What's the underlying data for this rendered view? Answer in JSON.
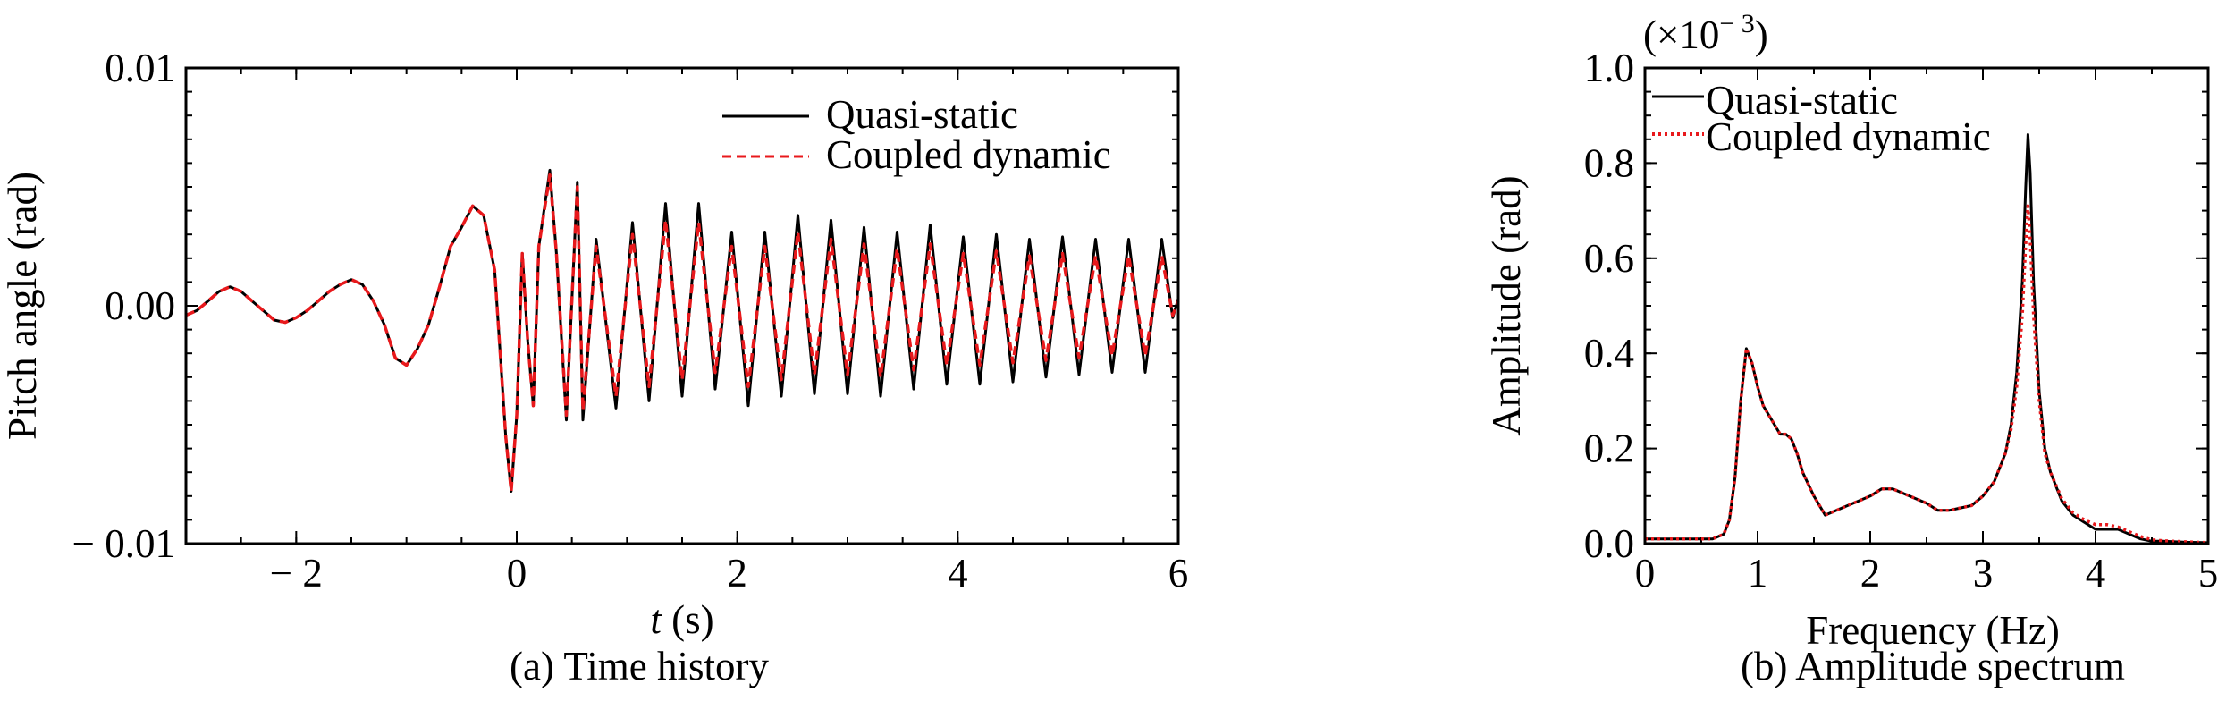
{
  "chart_data": [
    {
      "type": "line",
      "caption": "(a) Time history",
      "xlabel_var": "t",
      "xlabel_unit": " (s)",
      "ylabel": "Pitch angle (rad)",
      "xlim": [
        -3,
        6
      ],
      "ylim": [
        -0.01,
        0.01
      ],
      "xticks": [
        -2,
        0,
        2,
        4,
        6
      ],
      "xtick_labels": [
        "− 2",
        "0",
        "2",
        "4",
        "6"
      ],
      "yticks": [
        -0.01,
        0.0,
        0.01
      ],
      "ytick_labels": [
        "− 0.01",
        "0.00",
        "0.01"
      ],
      "legend_position": "top-right",
      "series": [
        {
          "name": "Quasi-static",
          "color": "#000000",
          "dash": "solid",
          "x": [
            -3.0,
            -2.9,
            -2.8,
            -2.7,
            -2.6,
            -2.5,
            -2.4,
            -2.3,
            -2.2,
            -2.1,
            -2.0,
            -1.9,
            -1.8,
            -1.7,
            -1.6,
            -1.5,
            -1.4,
            -1.3,
            -1.2,
            -1.1,
            -1.0,
            -0.9,
            -0.8,
            -0.7,
            -0.6,
            -0.5,
            -0.4,
            -0.3,
            -0.2,
            -0.1,
            -0.05,
            0.0,
            0.05,
            0.1,
            0.15,
            0.2,
            0.3,
            0.36,
            0.45,
            0.55,
            0.6,
            0.72,
            0.9,
            1.05,
            1.2,
            1.35,
            1.5,
            1.65,
            1.8,
            1.95,
            2.1,
            2.25,
            2.4,
            2.55,
            2.7,
            2.85,
            3.0,
            3.15,
            3.3,
            3.45,
            3.6,
            3.75,
            3.9,
            4.05,
            4.2,
            4.35,
            4.5,
            4.65,
            4.8,
            4.95,
            5.1,
            5.25,
            5.4,
            5.55,
            5.7,
            5.85,
            5.95,
            6.0
          ],
          "y": [
            -0.0004,
            -0.0002,
            0.0002,
            0.0006,
            0.0008,
            0.0006,
            0.0002,
            -0.0002,
            -0.0006,
            -0.0007,
            -0.0005,
            -0.0002,
            0.0002,
            0.0006,
            0.0009,
            0.0011,
            0.0009,
            0.0002,
            -0.0008,
            -0.0022,
            -0.0025,
            -0.0018,
            -0.0008,
            0.0008,
            0.0025,
            0.0033,
            0.0042,
            0.0038,
            0.0015,
            -0.0055,
            -0.0078,
            -0.0046,
            0.0022,
            -0.0015,
            -0.0042,
            0.0025,
            0.0057,
            0.0022,
            -0.0048,
            0.0052,
            -0.0048,
            0.0028,
            -0.0043,
            0.0035,
            -0.004,
            0.0043,
            -0.0038,
            0.0043,
            -0.0035,
            0.0031,
            -0.0042,
            0.0031,
            -0.0038,
            0.0038,
            -0.0037,
            0.0036,
            -0.0037,
            0.0033,
            -0.0038,
            0.0031,
            -0.0035,
            0.0034,
            -0.0033,
            0.0029,
            -0.0033,
            0.003,
            -0.0032,
            0.0028,
            -0.003,
            0.0029,
            -0.0029,
            0.0028,
            -0.0028,
            0.0028,
            -0.0028,
            0.0028,
            -0.0005,
            0.0003
          ]
        },
        {
          "name": "Coupled dynamic",
          "color": "#e8191c",
          "dash": "dashed",
          "x": [
            -3.0,
            -2.9,
            -2.8,
            -2.7,
            -2.6,
            -2.5,
            -2.4,
            -2.3,
            -2.2,
            -2.1,
            -2.0,
            -1.9,
            -1.8,
            -1.7,
            -1.6,
            -1.5,
            -1.4,
            -1.3,
            -1.2,
            -1.1,
            -1.0,
            -0.9,
            -0.8,
            -0.7,
            -0.6,
            -0.5,
            -0.4,
            -0.3,
            -0.2,
            -0.1,
            -0.05,
            0.0,
            0.05,
            0.1,
            0.15,
            0.2,
            0.3,
            0.36,
            0.45,
            0.55,
            0.6,
            0.72,
            0.9,
            1.05,
            1.2,
            1.35,
            1.5,
            1.65,
            1.8,
            1.95,
            2.1,
            2.25,
            2.4,
            2.55,
            2.7,
            2.85,
            3.0,
            3.15,
            3.3,
            3.45,
            3.6,
            3.75,
            3.9,
            4.05,
            4.2,
            4.35,
            4.5,
            4.65,
            4.8,
            4.95,
            5.1,
            5.25,
            5.4,
            5.55,
            5.7,
            5.85,
            5.95,
            6.0
          ],
          "y": [
            -0.0004,
            -0.0002,
            0.0002,
            0.0006,
            0.0008,
            0.0006,
            0.0002,
            -0.0002,
            -0.0006,
            -0.0007,
            -0.0005,
            -0.0002,
            0.0002,
            0.0006,
            0.0009,
            0.0011,
            0.0009,
            0.0002,
            -0.0008,
            -0.0022,
            -0.0025,
            -0.0018,
            -0.0008,
            0.0008,
            0.0025,
            0.0033,
            0.0042,
            0.0038,
            0.0015,
            -0.0055,
            -0.0078,
            -0.0046,
            0.0022,
            -0.0015,
            -0.0042,
            0.0025,
            0.0055,
            0.0022,
            -0.0046,
            0.005,
            -0.0044,
            0.0025,
            -0.0038,
            0.003,
            -0.0034,
            0.0036,
            -0.0031,
            0.0035,
            -0.0028,
            0.0025,
            -0.0034,
            0.0025,
            -0.0031,
            0.0031,
            -0.0029,
            0.0028,
            -0.0029,
            0.0026,
            -0.003,
            0.0024,
            -0.0027,
            0.0026,
            -0.0025,
            0.0022,
            -0.0025,
            0.0023,
            -0.0024,
            0.0021,
            -0.0023,
            0.0022,
            -0.0022,
            0.0021,
            -0.0021,
            0.0021,
            -0.0021,
            0.0021,
            -0.0004,
            0.0002
          ]
        }
      ]
    },
    {
      "type": "line",
      "caption": "(b) Amplitude spectrum",
      "xlabel": "Frequency (Hz)",
      "ylabel": "Amplitude (rad)",
      "scale_label": "(×10",
      "scale_exponent": "− 3",
      "scale_close": ")",
      "xlim": [
        0,
        5
      ],
      "ylim": [
        0,
        1.0
      ],
      "xticks": [
        0,
        1,
        2,
        3,
        4,
        5
      ],
      "xtick_labels": [
        "0",
        "1",
        "2",
        "3",
        "4",
        "5"
      ],
      "yticks": [
        0.0,
        0.2,
        0.4,
        0.6,
        0.8,
        1.0
      ],
      "ytick_labels": [
        "0.0",
        "0.2",
        "0.4",
        "0.6",
        "0.8",
        "1.0"
      ],
      "legend_position": "top-left",
      "series": [
        {
          "name": "Quasi-static",
          "color": "#000000",
          "dash": "solid",
          "x": [
            0.0,
            0.3,
            0.6,
            0.7,
            0.75,
            0.8,
            0.85,
            0.9,
            0.95,
            1.0,
            1.05,
            1.1,
            1.15,
            1.2,
            1.25,
            1.3,
            1.35,
            1.4,
            1.5,
            1.6,
            1.7,
            1.8,
            1.9,
            2.0,
            2.1,
            2.2,
            2.3,
            2.4,
            2.5,
            2.6,
            2.7,
            2.8,
            2.9,
            3.0,
            3.1,
            3.2,
            3.25,
            3.3,
            3.35,
            3.38,
            3.4,
            3.42,
            3.45,
            3.5,
            3.55,
            3.6,
            3.7,
            3.8,
            3.9,
            4.0,
            4.1,
            4.2,
            4.3,
            4.4,
            4.5,
            4.6,
            4.8,
            5.0
          ],
          "y": [
            0.01,
            0.01,
            0.01,
            0.02,
            0.05,
            0.14,
            0.3,
            0.41,
            0.38,
            0.33,
            0.29,
            0.27,
            0.25,
            0.23,
            0.23,
            0.22,
            0.19,
            0.15,
            0.1,
            0.06,
            0.07,
            0.08,
            0.09,
            0.1,
            0.115,
            0.115,
            0.105,
            0.095,
            0.085,
            0.07,
            0.07,
            0.075,
            0.08,
            0.1,
            0.13,
            0.19,
            0.25,
            0.36,
            0.55,
            0.75,
            0.86,
            0.78,
            0.55,
            0.32,
            0.2,
            0.15,
            0.09,
            0.06,
            0.045,
            0.03,
            0.03,
            0.03,
            0.02,
            0.01,
            0.005,
            0.005,
            0.003,
            0.002
          ]
        },
        {
          "name": "Coupled dynamic",
          "color": "#e8191c",
          "dash": "dotted",
          "x": [
            0.0,
            0.3,
            0.6,
            0.7,
            0.75,
            0.8,
            0.85,
            0.9,
            0.95,
            1.0,
            1.05,
            1.1,
            1.15,
            1.2,
            1.25,
            1.3,
            1.35,
            1.4,
            1.5,
            1.6,
            1.7,
            1.8,
            1.9,
            2.0,
            2.1,
            2.2,
            2.3,
            2.4,
            2.5,
            2.6,
            2.7,
            2.8,
            2.9,
            3.0,
            3.1,
            3.2,
            3.25,
            3.3,
            3.35,
            3.38,
            3.4,
            3.42,
            3.45,
            3.5,
            3.55,
            3.6,
            3.7,
            3.8,
            3.9,
            4.0,
            4.1,
            4.2,
            4.3,
            4.4,
            4.5,
            4.6,
            4.8,
            5.0
          ],
          "y": [
            0.01,
            0.01,
            0.01,
            0.02,
            0.05,
            0.14,
            0.3,
            0.41,
            0.38,
            0.33,
            0.29,
            0.27,
            0.25,
            0.23,
            0.23,
            0.22,
            0.19,
            0.15,
            0.1,
            0.06,
            0.07,
            0.08,
            0.09,
            0.1,
            0.115,
            0.115,
            0.105,
            0.095,
            0.085,
            0.07,
            0.07,
            0.075,
            0.08,
            0.1,
            0.13,
            0.19,
            0.24,
            0.33,
            0.48,
            0.63,
            0.71,
            0.64,
            0.48,
            0.3,
            0.19,
            0.15,
            0.095,
            0.065,
            0.05,
            0.04,
            0.04,
            0.035,
            0.025,
            0.015,
            0.008,
            0.006,
            0.004,
            0.002
          ]
        }
      ]
    }
  ]
}
